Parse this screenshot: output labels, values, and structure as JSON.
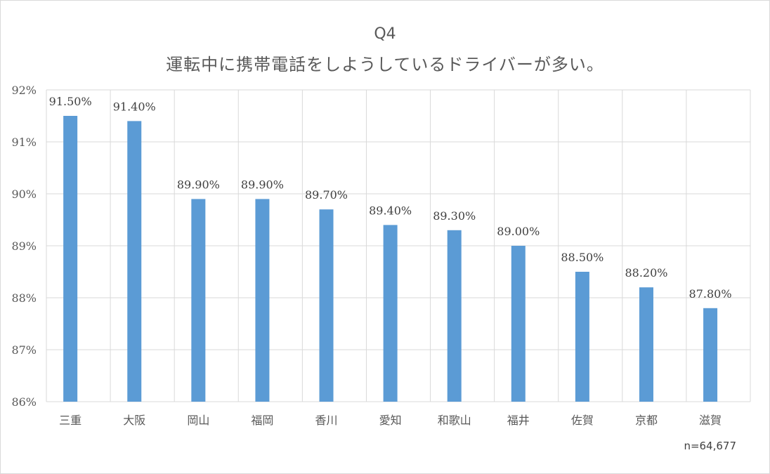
{
  "chart_data": {
    "type": "bar",
    "title_line1": "Q4",
    "title_line2": "運転中に携帯電話をしようしているドライバーが多い。",
    "categories": [
      "三重",
      "大阪",
      "岡山",
      "福岡",
      "香川",
      "愛知",
      "和歌山",
      "福井",
      "佐賀",
      "京都",
      "滋賀"
    ],
    "values": [
      91.5,
      91.4,
      89.9,
      89.9,
      89.7,
      89.4,
      89.3,
      89.0,
      88.5,
      88.2,
      87.8
    ],
    "data_labels": [
      "91.50%",
      "91.40%",
      "89.90%",
      "89.90%",
      "89.70%",
      "89.40%",
      "89.30%",
      "89.00%",
      "88.50%",
      "88.20%",
      "87.80%"
    ],
    "y_ticks": [
      86,
      87,
      88,
      89,
      90,
      91,
      92
    ],
    "y_tick_labels": [
      "86%",
      "87%",
      "88%",
      "89%",
      "90%",
      "91%",
      "92%"
    ],
    "ylim": [
      86,
      92
    ],
    "grid": true,
    "bar_color": "#5b9bd5",
    "grid_color": "#d9d9d9",
    "xlabel": "",
    "ylabel": ""
  },
  "note": "n=64,677"
}
